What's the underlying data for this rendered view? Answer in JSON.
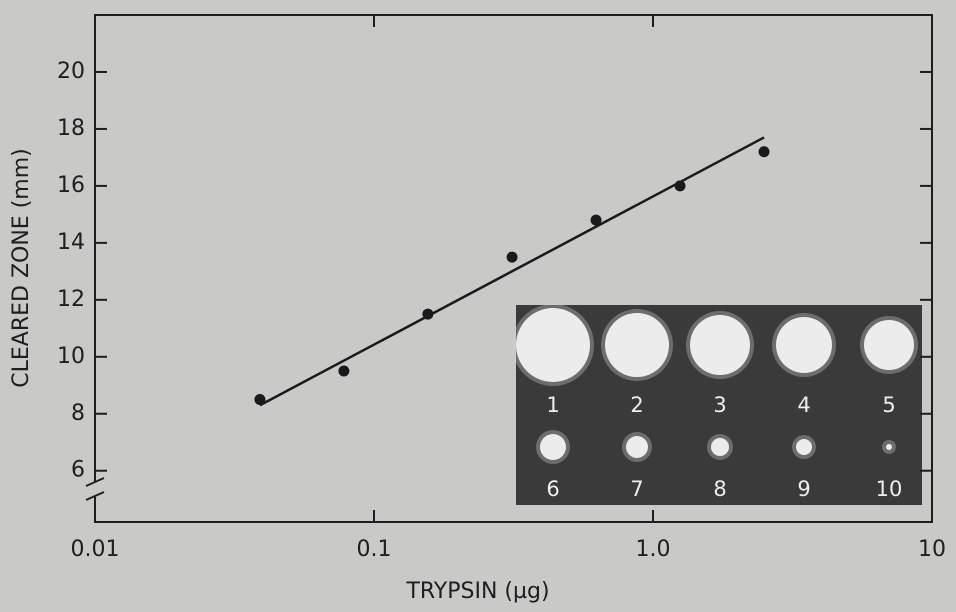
{
  "chart_data": {
    "type": "scatter",
    "xlabel": "TRYPSIN (µg)",
    "ylabel": "CLEARED ZONE (mm)",
    "xscale": "log",
    "xlim": [
      0.01,
      10
    ],
    "xticks": [
      0.01,
      0.1,
      {
        "value": 1,
        "label": "1.0"
      },
      10
    ],
    "ylim": [
      4.2,
      22
    ],
    "yticks": [
      6,
      8,
      10,
      12,
      14,
      16,
      18,
      20
    ],
    "series": [
      {
        "style": "points",
        "color": "#1a1a1a",
        "x": [
          0.039,
          0.078,
          0.156,
          0.3125,
          0.625,
          1.25,
          2.5
        ],
        "values": [
          8.5,
          9.5,
          11.5,
          13.5,
          14.8,
          16.0,
          17.2
        ]
      },
      {
        "style": "line",
        "color": "#1a1a1a",
        "x": [
          0.039,
          2.5
        ],
        "values": [
          8.3,
          17.7
        ]
      }
    ],
    "inset": {
      "labels": [
        "1",
        "2",
        "3",
        "4",
        "5",
        "6",
        "7",
        "8",
        "9",
        "10"
      ]
    }
  }
}
